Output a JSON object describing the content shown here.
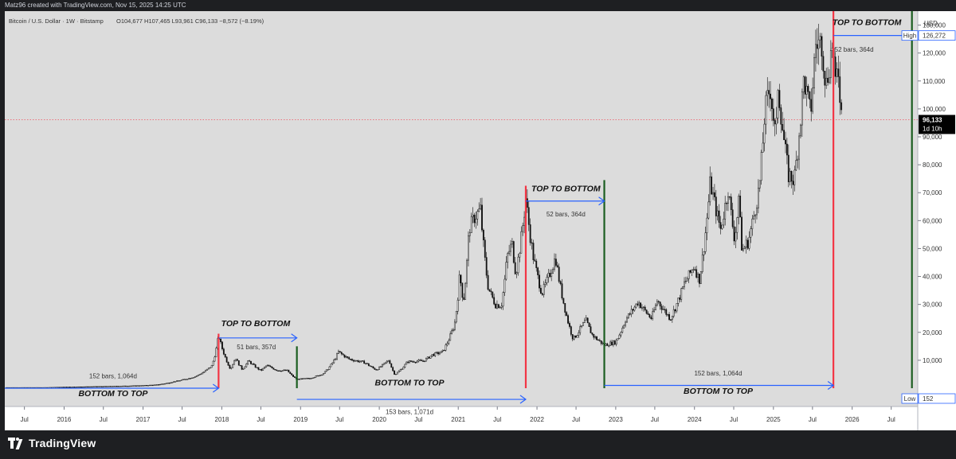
{
  "header": {
    "credit": "Matz96 created with TradingView.com, Nov 15, 2025 14:25 UTC"
  },
  "legend": {
    "symbol": "Bitcoin / U.S. Dollar · 1W · Bitstamp",
    "ohlc": "O104,677  H107,465  L93,961  C96,133  −8,572 (−8.19%)"
  },
  "footer": {
    "brand": "TradingView"
  },
  "colors": {
    "chart_bg": "#dcdcdc",
    "up": "#111111",
    "arrow": "#2962ff",
    "top_line": "#f23645",
    "bottom_line": "#1b5e20",
    "price_dot": "#f23645"
  },
  "chart_data": {
    "type": "candlestick",
    "currency_label": "USD",
    "last_price": {
      "value": 96133,
      "label": "96,133",
      "countdown": "1d 10h"
    },
    "high_marker": {
      "tag": "High",
      "label": "126,272",
      "value": 126272
    },
    "low_marker": {
      "tag": "Low",
      "label": "152",
      "value": 152
    },
    "y_axis": {
      "range": [
        0,
        135000
      ],
      "ticks": [
        10000,
        20000,
        30000,
        40000,
        50000,
        60000,
        70000,
        80000,
        90000,
        100000,
        110000,
        120000,
        130000
      ],
      "tick_labels": [
        "10,000",
        "20,000",
        "30,000",
        "40,000",
        "50,000",
        "60,000",
        "70,000",
        "80,000",
        "90,000",
        "100,000",
        "110,000",
        "120,000",
        "130,000"
      ]
    },
    "x_axis": {
      "range": [
        "2015-04-01",
        "2026-11-01"
      ],
      "ticks": [
        {
          "date": "2015-07-01",
          "label": "Jul"
        },
        {
          "date": "2016-01-01",
          "label": "2016"
        },
        {
          "date": "2016-07-01",
          "label": "Jul"
        },
        {
          "date": "2017-01-01",
          "label": "2017"
        },
        {
          "date": "2017-07-01",
          "label": "Jul"
        },
        {
          "date": "2018-01-01",
          "label": "2018"
        },
        {
          "date": "2018-07-01",
          "label": "Jul"
        },
        {
          "date": "2019-01-01",
          "label": "2019"
        },
        {
          "date": "2019-07-01",
          "label": "Jul"
        },
        {
          "date": "2020-01-01",
          "label": "2020"
        },
        {
          "date": "2020-07-01",
          "label": "Jul"
        },
        {
          "date": "2021-01-01",
          "label": "2021"
        },
        {
          "date": "2021-07-01",
          "label": "Jul"
        },
        {
          "date": "2022-01-01",
          "label": "2022"
        },
        {
          "date": "2022-07-01",
          "label": "Jul"
        },
        {
          "date": "2023-01-01",
          "label": "2023"
        },
        {
          "date": "2023-07-01",
          "label": "Jul"
        },
        {
          "date": "2024-01-01",
          "label": "2024"
        },
        {
          "date": "2024-07-01",
          "label": "Jul"
        },
        {
          "date": "2025-01-01",
          "label": "2025"
        },
        {
          "date": "2025-07-01",
          "label": "Jul"
        },
        {
          "date": "2026-01-01",
          "label": "2026"
        },
        {
          "date": "2026-07-01",
          "label": "Jul"
        }
      ]
    },
    "price_path": [
      [
        "2015-04-01",
        240
      ],
      [
        "2015-10-01",
        250
      ],
      [
        "2016-01-01",
        430
      ],
      [
        "2016-07-01",
        650
      ],
      [
        "2016-12-01",
        900
      ],
      [
        "2017-03-01",
        1200
      ],
      [
        "2017-06-01",
        2500
      ],
      [
        "2017-09-01",
        4200
      ],
      [
        "2017-11-15",
        8000
      ],
      [
        "2017-12-17",
        19000
      ],
      [
        "2018-01-15",
        11500
      ],
      [
        "2018-02-10",
        7000
      ],
      [
        "2018-03-05",
        11000
      ],
      [
        "2018-04-05",
        6800
      ],
      [
        "2018-05-05",
        9800
      ],
      [
        "2018-07-01",
        6300
      ],
      [
        "2018-07-28",
        8200
      ],
      [
        "2018-09-15",
        6400
      ],
      [
        "2018-11-01",
        6300
      ],
      [
        "2018-12-15",
        3200
      ],
      [
        "2019-02-15",
        3600
      ],
      [
        "2019-04-15",
        5200
      ],
      [
        "2019-06-26",
        13000
      ],
      [
        "2019-08-15",
        10400
      ],
      [
        "2019-10-26",
        9200
      ],
      [
        "2019-12-17",
        6600
      ],
      [
        "2020-02-15",
        10200
      ],
      [
        "2020-03-13",
        4900
      ],
      [
        "2020-05-10",
        9500
      ],
      [
        "2020-07-25",
        9800
      ],
      [
        "2020-09-01",
        11900
      ],
      [
        "2020-10-20",
        13000
      ],
      [
        "2020-12-15",
        23000
      ],
      [
        "2021-01-08",
        41000
      ],
      [
        "2021-01-25",
        31000
      ],
      [
        "2021-02-20",
        57000
      ],
      [
        "2021-03-15",
        61000
      ],
      [
        "2021-04-14",
        64000
      ],
      [
        "2021-05-20",
        36000
      ],
      [
        "2021-06-22",
        30000
      ],
      [
        "2021-07-20",
        29700
      ],
      [
        "2021-08-15",
        47000
      ],
      [
        "2021-09-07",
        52000
      ],
      [
        "2021-09-25",
        41000
      ],
      [
        "2021-11-10",
        68000
      ],
      [
        "2021-12-15",
        47000
      ],
      [
        "2022-01-24",
        34000
      ],
      [
        "2022-03-28",
        47000
      ],
      [
        "2022-05-12",
        28000
      ],
      [
        "2022-06-18",
        17600
      ],
      [
        "2022-08-15",
        24500
      ],
      [
        "2022-09-15",
        19000
      ],
      [
        "2022-11-09",
        15500
      ],
      [
        "2022-12-31",
        16500
      ],
      [
        "2023-02-15",
        24500
      ],
      [
        "2023-04-14",
        31000
      ],
      [
        "2023-06-15",
        25000
      ],
      [
        "2023-07-13",
        31500
      ],
      [
        "2023-09-11",
        25000
      ],
      [
        "2023-11-15",
        37500
      ],
      [
        "2023-12-31",
        44000
      ],
      [
        "2024-01-23",
        38500
      ],
      [
        "2024-03-14",
        73800
      ],
      [
        "2024-05-01",
        57000
      ],
      [
        "2024-06-05",
        71500
      ],
      [
        "2024-07-05",
        53500
      ],
      [
        "2024-07-29",
        70000
      ],
      [
        "2024-08-05",
        49000
      ],
      [
        "2024-09-06",
        52500
      ],
      [
        "2024-10-29",
        73000
      ],
      [
        "2024-11-22",
        99000
      ],
      [
        "2024-12-17",
        108000
      ],
      [
        "2025-01-13",
        89000
      ],
      [
        "2025-01-22",
        109000
      ],
      [
        "2025-03-11",
        76500
      ],
      [
        "2025-04-07",
        74500
      ],
      [
        "2025-05-22",
        111000
      ],
      [
        "2025-06-22",
        98000
      ],
      [
        "2025-07-14",
        123000
      ],
      [
        "2025-08-14",
        124000
      ],
      [
        "2025-09-01",
        108000
      ],
      [
        "2025-10-06",
        126272
      ],
      [
        "2025-10-11",
        104000
      ],
      [
        "2025-10-27",
        116000
      ],
      [
        "2025-11-15",
        96133
      ]
    ],
    "vertical_markers": [
      {
        "date": "2017-12-17",
        "y_from": 0,
        "y_to": 19500,
        "kind": "top"
      },
      {
        "date": "2018-12-15",
        "y_from": 0,
        "y_to": 15000,
        "kind": "bottom"
      },
      {
        "date": "2021-11-10",
        "y_from": 0,
        "y_to": 72500,
        "kind": "top"
      },
      {
        "date": "2022-11-09",
        "y_from": 0,
        "y_to": 74500,
        "kind": "bottom"
      },
      {
        "date": "2025-10-06",
        "y_from": 0,
        "y_to": 135000,
        "kind": "top"
      },
      {
        "date": "2026-10-05",
        "y_from": 0,
        "y_to": 135000,
        "kind": "bottom"
      }
    ],
    "arrows": [
      {
        "from": [
          "2015-04-01",
          0
        ],
        "to": [
          "2017-12-17",
          0
        ]
      },
      {
        "from": [
          "2017-12-17",
          18000
        ],
        "to": [
          "2018-12-15",
          18000
        ]
      },
      {
        "from": [
          "2018-12-15",
          -4000
        ],
        "to": [
          "2021-11-10",
          -4000
        ]
      },
      {
        "from": [
          "2021-11-10",
          67000
        ],
        "to": [
          "2022-11-09",
          67000
        ]
      },
      {
        "from": [
          "2022-11-09",
          1000
        ],
        "to": [
          "2025-10-06",
          1000
        ]
      },
      {
        "from": [
          "2025-10-06",
          126272
        ],
        "to": [
          "2026-10-05",
          126272
        ]
      }
    ],
    "annotations": [
      {
        "text": "TOP TO BOTTOM",
        "date": "2018-06-07",
        "value": 22200,
        "style": "bold"
      },
      {
        "text": "51 bars, 357d",
        "date": "2018-06-10",
        "value": 14000,
        "style": "small"
      },
      {
        "text": "152 bars, 1,064d",
        "date": "2016-08-15",
        "value": 3500,
        "style": "small"
      },
      {
        "text": "BOTTOM TO TOP",
        "date": "2016-08-15",
        "value": -2800,
        "style": "bold"
      },
      {
        "text": "BOTTOM TO TOP",
        "date": "2020-05-20",
        "value": 1000,
        "style": "bold"
      },
      {
        "text": "153 bars, 1,071d",
        "date": "2020-05-20",
        "value": -9200,
        "style": "small"
      },
      {
        "text": "TOP TO BOTTOM",
        "date": "2022-05-15",
        "value": 70500,
        "style": "bold"
      },
      {
        "text": "52 bars, 364d",
        "date": "2022-05-15",
        "value": 61500,
        "style": "small"
      },
      {
        "text": "152 bars, 1,064d",
        "date": "2024-04-20",
        "value": 4500,
        "style": "small"
      },
      {
        "text": "BOTTOM TO TOP",
        "date": "2024-04-20",
        "value": -2000,
        "style": "bold"
      },
      {
        "text": "TOP TO BOTTOM",
        "date": "2026-03-10",
        "value": 130000,
        "style": "bold"
      },
      {
        "text": "52 bars, 364d",
        "date": "2026-01-10",
        "value": 120500,
        "style": "small"
      }
    ]
  }
}
